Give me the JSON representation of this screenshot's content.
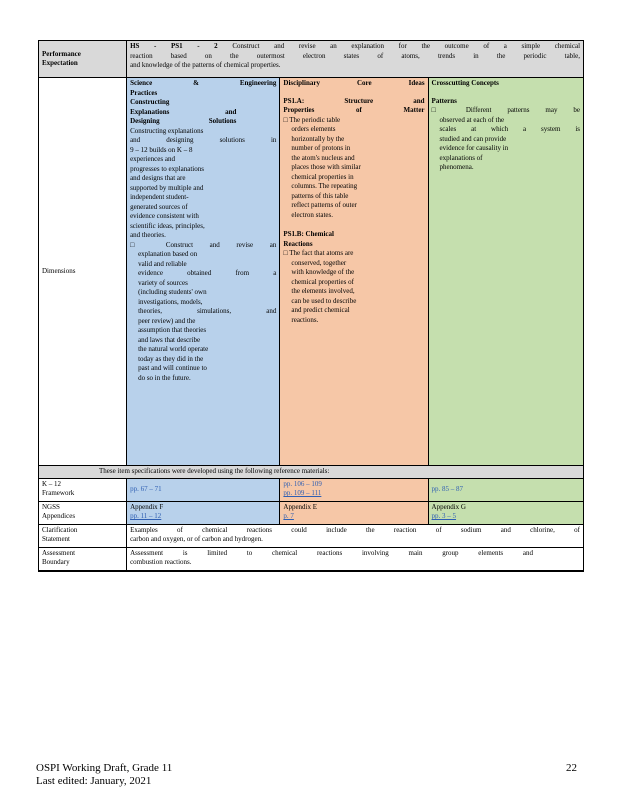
{
  "performance_expectation": {
    "label_line1": "Performance",
    "label_line2": "Expectation",
    "code": "HS - PS1 - 2",
    "text_line1": "Construct and revise an explanation for the outcome of a simple chemical",
    "text_line2": "reaction based on the outermost electron states of atoms, trends in the periodic table,",
    "text_line3": "and knowledge of the patterns of chemical properties."
  },
  "dimensions": {
    "label": "Dimensions",
    "sep": {
      "heading_line1": "Science & Engineering",
      "heading_line2": "Practices",
      "sub_line1": "Constructing",
      "sub_line2": "Explanations and",
      "sub_line3": "Designing Solutions",
      "body": [
        "Constructing explanations",
        "and designing solutions in",
        "9 – 12 builds on K – 8",
        "experiences and",
        "progresses to explanations",
        "and designs that are",
        "supported by multiple and",
        "independent student-",
        "generated sources of",
        "evidence consistent with",
        "scientific ideas, principles,",
        "and theories."
      ],
      "bullet": [
        "□ Construct and revise an",
        "explanation based on",
        "valid and reliable",
        "evidence obtained from a",
        "variety of sources",
        "(including students' own",
        "investigations, models,",
        "theories, simulations, and",
        "peer review) and the",
        "assumption that theories",
        "and laws that describe",
        "the natural world operate",
        "today as they did in the",
        "past and will continue to",
        "do so in the future."
      ]
    },
    "dci": {
      "heading": "Disciplinary Core Ideas",
      "sub1_line1": "PS1.A: Structure and",
      "sub1_line2": "Properties of Matter",
      "body1": [
        "□ The periodic table",
        "orders elements",
        "horizontally by the",
        "number of protons in",
        "the atom's nucleus and",
        "places those with similar",
        "chemical properties in",
        "columns. The repeating",
        "patterns of this table",
        "reflect patterns of outer",
        "electron states."
      ],
      "sub2_line1": "PS1.B: Chemical",
      "sub2_line2": "Reactions",
      "body2": [
        "□ The fact that atoms are",
        "conserved, together",
        "with knowledge of the",
        "chemical properties of",
        "the elements involved,",
        "can be used to describe",
        "and predict chemical",
        "reactions."
      ]
    },
    "ccc": {
      "heading": "Crosscutting Concepts",
      "sub": "Patterns",
      "body": [
        "□ Different patterns may be",
        "observed at each of the",
        "scales at which a system is",
        "studied and can provide",
        "evidence for causality in",
        "explanations of",
        "phenomena."
      ]
    }
  },
  "reference_note": "These item specifications were developed using the following reference materials:",
  "framework": {
    "label_line1": "K – 12",
    "label_line2": "Framework",
    "sep": "pp. 67 – 71",
    "dci": "pp. 106 – 109",
    "dci2": "pp. 109 – 111",
    "ccc": "pp. 85 – 87"
  },
  "ngss": {
    "label_line1": "NGSS",
    "label_line2": "Appendices",
    "sep_app": "Appendix F",
    "sep_pp": "pp. 11 – 12",
    "dci_app": "Appendix E",
    "dci_pp": "p. 7",
    "ccc_app": "Appendix G",
    "ccc_pp": "pp. 3 – 5"
  },
  "clarification": {
    "label_line1": "Clarification",
    "label_line2": "Statement",
    "text_line1": "Examples of chemical reactions could include the reaction of sodium and chlorine, of",
    "text_line2": "carbon and oxygen, or of carbon and hydrogen."
  },
  "boundary": {
    "label_line1": "Assessment",
    "label_line2": "Boundary",
    "text_line1": "Assessment is limited to chemical reactions involving main group elements and",
    "text_line2": "combustion reactions."
  },
  "footer": {
    "line1": "OSPI Working Draft, Grade 11",
    "line2": "Last edited: January, 2021",
    "page": "22"
  }
}
